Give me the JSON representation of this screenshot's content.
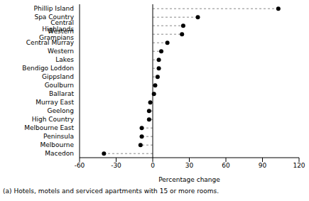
{
  "chart_data": {
    "type": "dot",
    "orientation": "horizontal",
    "x_label": "Percentage change",
    "annotations": [
      "(a) Hotels, motels and serviced apartments with 15 or more rooms."
    ],
    "categories": [
      "Phillip Island",
      "Spa Country",
      "Central Highlands",
      "Western Grampians",
      "Central Murray",
      "Western",
      "Lakes",
      "Bendigo Loddon",
      "Gippsland",
      "Goulburn",
      "Ballarat",
      "Murray East",
      "Geelong",
      "High Country",
      "Melbourne East",
      "Peninsula",
      "Melbourne",
      "Macedon"
    ],
    "values": [
      103,
      37,
      25,
      24,
      12,
      7,
      5,
      5,
      4,
      2,
      1,
      -2,
      -3,
      -3,
      -9,
      -9,
      -10,
      -40
    ],
    "color": "#000000",
    "marker": "circle",
    "line_style": "dashed",
    "grid": false,
    "xlim": [
      -60,
      120
    ],
    "xticks": [
      -60,
      -30,
      0,
      30,
      60,
      90,
      120
    ]
  }
}
